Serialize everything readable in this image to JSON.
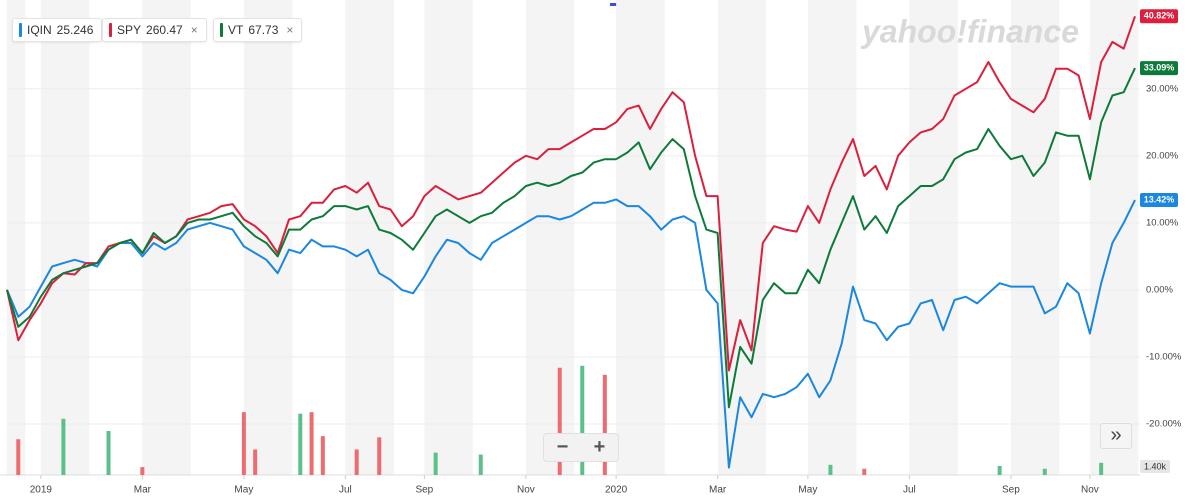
{
  "chart_data": {
    "type": "line",
    "categories": [
      null,
      null,
      null,
      "2019",
      null,
      null,
      null,
      null,
      null,
      null,
      null,
      null,
      "Mar",
      null,
      null,
      null,
      null,
      null,
      null,
      null,
      null,
      "May",
      null,
      null,
      null,
      null,
      null,
      null,
      null,
      null,
      "Jul",
      null,
      null,
      null,
      null,
      null,
      null,
      "Sep",
      null,
      null,
      null,
      null,
      null,
      null,
      null,
      null,
      "Nov",
      null,
      null,
      null,
      null,
      null,
      null,
      null,
      "2020",
      null,
      null,
      null,
      null,
      null,
      null,
      null,
      null,
      "Mar",
      null,
      null,
      null,
      null,
      null,
      null,
      null,
      "May",
      null,
      null,
      null,
      null,
      null,
      null,
      null,
      null,
      "Jul",
      null,
      null,
      null,
      null,
      null,
      null,
      null,
      null,
      "Sep",
      null,
      null,
      null,
      null,
      null,
      null,
      "Nov",
      null,
      null,
      null,
      null
    ],
    "series": [
      {
        "name": "IQIN",
        "price": 25.246,
        "color": "#1a87e0",
        "value_labels": [
          null,
          null,
          null,
          null,
          null,
          null,
          null,
          null,
          null,
          null,
          null,
          null,
          null,
          null,
          null,
          null,
          null,
          null,
          null,
          null,
          null,
          null,
          null,
          null,
          null,
          null,
          null,
          null,
          null,
          null,
          null,
          null,
          null,
          null,
          null,
          null,
          null,
          null,
          null,
          null,
          null,
          null,
          null,
          null,
          null,
          null,
          null,
          null,
          null,
          null,
          null,
          null,
          null,
          null,
          null,
          null,
          null,
          null,
          null,
          null,
          null,
          null,
          null,
          null,
          null,
          null,
          null,
          null,
          null,
          null,
          null,
          null,
          null,
          null,
          null,
          null,
          null,
          null,
          null,
          null,
          null,
          null,
          null,
          null,
          null,
          null,
          null,
          null,
          null,
          null,
          null,
          null,
          null,
          null,
          null,
          null,
          null,
          null,
          null,
          null,
          "13.42%"
        ],
        "values": [
          0,
          -4,
          -2.5,
          0.5,
          3.5,
          4,
          4.5,
          4,
          3.5,
          6,
          7,
          7,
          5,
          7,
          6,
          7,
          9,
          9.5,
          10,
          9.5,
          9,
          6.5,
          5.5,
          4.5,
          2.5,
          6,
          5.5,
          7.5,
          6.5,
          6.5,
          6,
          5,
          6,
          2.5,
          1.5,
          0,
          -0.5,
          2,
          5,
          7.5,
          7,
          5.5,
          4.5,
          7,
          8,
          9,
          10,
          11,
          11,
          10.5,
          11,
          12,
          13,
          13,
          13.5,
          12.5,
          12.5,
          11,
          9,
          10.5,
          11,
          10,
          0,
          -2,
          -26.5,
          -16,
          -19,
          -15.5,
          -16,
          -15.5,
          -14.5,
          -12.5,
          -16,
          -13.5,
          -8,
          0.5,
          -4.5,
          -5,
          -7.5,
          -5.5,
          -5,
          -2,
          -1.5,
          -6,
          -1.5,
          -1,
          -2,
          -0.5,
          1,
          0.5,
          0.5,
          0.5,
          -3.5,
          -2.5,
          1,
          -0.5,
          -6.5,
          1,
          7,
          10,
          13.42
        ]
      },
      {
        "name": "SPY",
        "price": 260.47,
        "color": "#dc1f3c",
        "value_labels": [
          null,
          null,
          null,
          null,
          null,
          null,
          null,
          null,
          null,
          null,
          null,
          null,
          null,
          null,
          null,
          null,
          null,
          null,
          null,
          null,
          null,
          null,
          null,
          null,
          null,
          null,
          null,
          null,
          null,
          null,
          null,
          null,
          null,
          null,
          null,
          null,
          null,
          null,
          null,
          null,
          null,
          null,
          null,
          null,
          null,
          null,
          null,
          null,
          null,
          null,
          null,
          null,
          null,
          null,
          null,
          null,
          null,
          null,
          null,
          null,
          null,
          null,
          null,
          null,
          null,
          null,
          null,
          null,
          null,
          null,
          null,
          null,
          null,
          null,
          null,
          null,
          null,
          null,
          null,
          null,
          null,
          null,
          null,
          null,
          null,
          null,
          null,
          null,
          null,
          null,
          null,
          null,
          null,
          null,
          null,
          null,
          null,
          null,
          null,
          null,
          "40.82%"
        ],
        "values": [
          0,
          -7.5,
          -4.5,
          -2,
          1,
          2.5,
          2.3,
          4,
          4,
          6.5,
          7,
          7.5,
          5.5,
          8,
          7,
          8,
          10.5,
          11,
          11.5,
          12.5,
          12.8,
          10.5,
          9.5,
          8,
          5.5,
          10.5,
          11,
          13,
          13,
          15,
          15.5,
          14.5,
          16,
          12.5,
          12,
          9.5,
          11,
          14,
          15.5,
          14.5,
          13.5,
          14,
          14.5,
          16,
          17.5,
          19,
          20,
          19.5,
          21,
          21,
          22,
          23,
          24,
          24,
          25,
          27,
          27.5,
          24,
          27,
          29.5,
          28,
          20,
          14,
          14,
          -12,
          -4.5,
          -9,
          7,
          9.5,
          9,
          8.7,
          12.5,
          10,
          15,
          19,
          22.5,
          17,
          18.5,
          15,
          20,
          22,
          23.5,
          24,
          25.5,
          29,
          30,
          31,
          34,
          31,
          28.5,
          27.5,
          26.5,
          28.5,
          33,
          33,
          32,
          25.5,
          34,
          37,
          36,
          40.82
        ]
      },
      {
        "name": "VT",
        "price": 67.73,
        "color": "#0e7a3a",
        "value_labels": [
          null,
          null,
          null,
          null,
          null,
          null,
          null,
          null,
          null,
          null,
          null,
          null,
          null,
          null,
          null,
          null,
          null,
          null,
          null,
          null,
          null,
          null,
          null,
          null,
          null,
          null,
          null,
          null,
          null,
          null,
          null,
          null,
          null,
          null,
          null,
          null,
          null,
          null,
          null,
          null,
          null,
          null,
          null,
          null,
          null,
          null,
          null,
          null,
          null,
          null,
          null,
          null,
          null,
          null,
          null,
          null,
          null,
          null,
          null,
          null,
          null,
          null,
          null,
          null,
          null,
          null,
          null,
          null,
          null,
          null,
          null,
          null,
          null,
          null,
          null,
          null,
          null,
          null,
          null,
          null,
          null,
          null,
          null,
          null,
          null,
          null,
          null,
          null,
          null,
          null,
          null,
          null,
          null,
          null,
          null,
          null,
          null,
          null,
          null,
          null,
          "33.09%"
        ],
        "values": [
          0,
          -5.5,
          -4,
          -1,
          1.5,
          2.5,
          3,
          3.5,
          4,
          6,
          7,
          7.5,
          5.5,
          8.5,
          7,
          8,
          10,
          10.5,
          10.5,
          11,
          11.5,
          9.5,
          8,
          7,
          5,
          9,
          9,
          10.5,
          11,
          12.5,
          12.5,
          12,
          12.5,
          9,
          8.5,
          7.5,
          6,
          8.5,
          11,
          12,
          11,
          10,
          11,
          11.5,
          13,
          14,
          15.5,
          16,
          15.5,
          16,
          17,
          17.5,
          19,
          19.5,
          19.5,
          20.5,
          22,
          18,
          20.5,
          22.5,
          21,
          14,
          9,
          8.5,
          -17.5,
          -8.5,
          -11,
          -1.5,
          1,
          -0.5,
          -0.5,
          3,
          1,
          6,
          10,
          14,
          9,
          11,
          8.5,
          12.5,
          14,
          15.5,
          15.5,
          16.5,
          19.5,
          20.5,
          21,
          24,
          21.5,
          19.5,
          20,
          17,
          19,
          23.5,
          23,
          23,
          16.5,
          25,
          29,
          29.5,
          33.09
        ]
      }
    ],
    "ylim": [
      -27.6,
      42.2
    ],
    "yticks": [
      {
        "value": -20,
        "label": "-20.00%"
      },
      {
        "value": -10,
        "label": "-10.00%"
      },
      {
        "value": 0,
        "label": "0.00%"
      },
      {
        "value": 10,
        "label": "10.00%"
      },
      {
        "value": 20,
        "label": "20.00%"
      },
      {
        "value": 30,
        "label": "30.00%"
      }
    ],
    "grid": true,
    "volume": {
      "ylim": [
        0,
        1400
      ],
      "ticks": [
        {
          "value": 1400,
          "label": "1.40k"
        }
      ],
      "up_color": "#5bc08a",
      "down_color": "#ee6b70",
      "up": [
        null,
        null,
        null,
        null,
        null,
        715,
        null,
        null,
        null,
        560,
        null,
        null,
        null,
        null,
        null,
        null,
        null,
        null,
        null,
        null,
        null,
        null,
        null,
        null,
        null,
        null,
        780,
        null,
        null,
        null,
        null,
        null,
        null,
        null,
        null,
        null,
        null,
        null,
        285,
        null,
        null,
        null,
        260,
        null,
        null,
        null,
        null,
        null,
        null,
        null,
        null,
        1390,
        null,
        null,
        null,
        null,
        null,
        null,
        null,
        null,
        null,
        null,
        null,
        null,
        null,
        null,
        null,
        null,
        null,
        null,
        null,
        null,
        null,
        130,
        null,
        null,
        null,
        null,
        null,
        null,
        null,
        null,
        null,
        null,
        null,
        null,
        null,
        null,
        115,
        null,
        null,
        null,
        80,
        null,
        null,
        null,
        null,
        155,
        null,
        null,
        null
      ],
      "down": [
        null,
        455,
        null,
        null,
        null,
        null,
        null,
        null,
        null,
        null,
        null,
        null,
        100,
        null,
        null,
        null,
        null,
        null,
        null,
        null,
        null,
        800,
        325,
        null,
        null,
        null,
        null,
        800,
        495,
        null,
        null,
        325,
        null,
        480,
        null,
        null,
        null,
        null,
        null,
        null,
        null,
        null,
        null,
        null,
        null,
        null,
        null,
        null,
        null,
        1365,
        null,
        null,
        null,
        1275,
        null,
        null,
        null,
        null,
        null,
        null,
        null,
        null,
        null,
        null,
        null,
        null,
        null,
        null,
        null,
        null,
        null,
        null,
        null,
        null,
        null,
        null,
        80,
        null,
        null,
        null,
        null,
        null,
        null,
        null,
        null,
        null,
        null,
        null,
        null,
        null,
        null,
        null,
        null,
        null,
        null,
        null,
        null,
        null,
        null,
        null,
        null
      ]
    },
    "watermark": "yahoo!finance",
    "controls": {
      "zoom_out": "−",
      "zoom_in": "+",
      "expand": "»",
      "close": "×"
    }
  }
}
